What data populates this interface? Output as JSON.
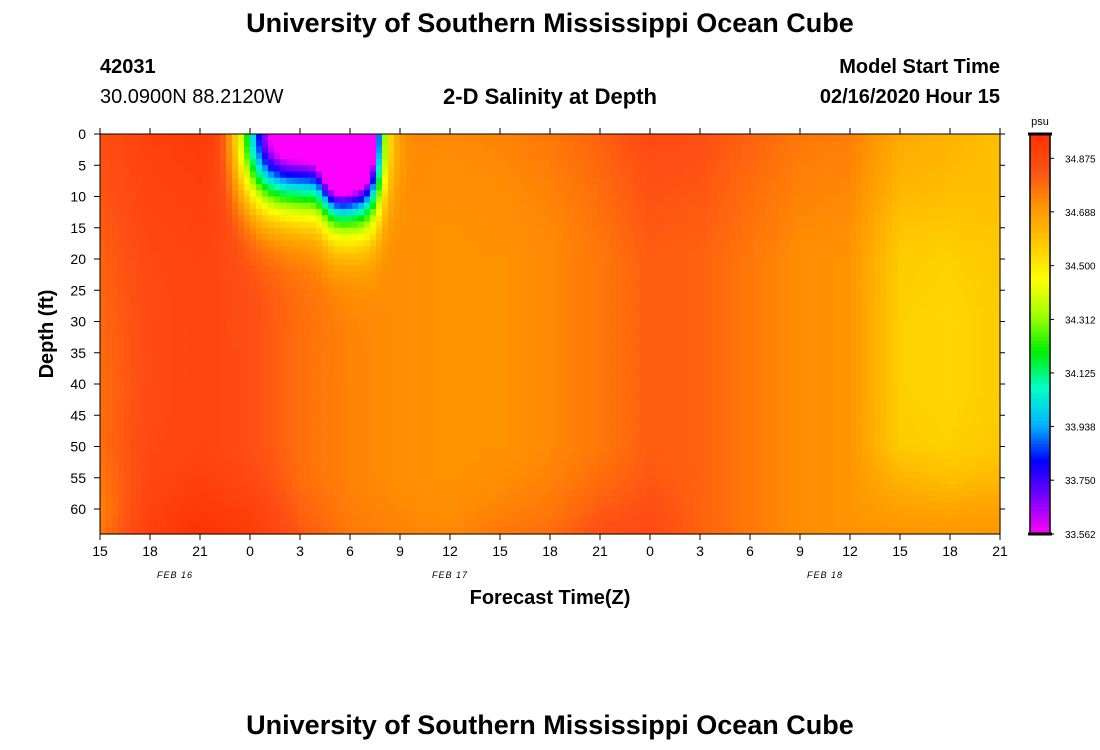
{
  "page": {
    "title_top": "University of Southern Mississippi Ocean Cube",
    "title_bottom": "University of Southern Mississippi Ocean Cube",
    "station_id": "42031",
    "station_coords": "30.0900N 88.2120W",
    "subtitle": "2-D Salinity at Depth",
    "model_start_label": "Model Start Time",
    "model_start_value": "02/16/2020 Hour 15"
  },
  "chart_data": {
    "type": "heatmap",
    "title": "2-D Salinity at Depth",
    "xlabel": "Forecast Time(Z)",
    "ylabel": "Depth (ft)",
    "x_hours_range": [
      0,
      54
    ],
    "x_tick_labels": [
      "15",
      "18",
      "21",
      "0",
      "3",
      "6",
      "9",
      "12",
      "15",
      "18",
      "21",
      "0",
      "3",
      "6",
      "9",
      "12",
      "15",
      "18",
      "21"
    ],
    "date_labels": [
      {
        "label": "FEB 16",
        "hour": 4.5
      },
      {
        "label": "FEB 17",
        "hour": 21
      },
      {
        "label": "FEB 18",
        "hour": 43.5
      }
    ],
    "y_range": [
      0,
      64
    ],
    "y_inverted": true,
    "y_ticks": [
      0,
      5,
      10,
      15,
      20,
      25,
      30,
      35,
      40,
      45,
      50,
      55,
      60
    ],
    "colorbar": {
      "unit": "psu",
      "min": 33.562,
      "max": 34.96,
      "tick_values": [
        34.875,
        34.688,
        34.5,
        34.312,
        34.125,
        33.938,
        33.75,
        33.562
      ],
      "tick_labels": [
        "34.875",
        "34.688",
        "34.500",
        "34.312",
        "34.125",
        "33.938",
        "33.750",
        "33.562"
      ],
      "colors": [
        "#ff00ff",
        "#7b00ff",
        "#0000ff",
        "#00b4ff",
        "#00ffc8",
        "#00f000",
        "#a0ff00",
        "#ffff00",
        "#ffc800",
        "#ff9600",
        "#ff5014",
        "#ff3200"
      ]
    },
    "grid": {
      "hours": [
        0,
        3,
        6,
        9,
        12,
        15,
        18,
        21,
        24,
        27,
        30,
        33,
        36,
        39,
        42,
        45,
        48,
        51,
        54
      ],
      "depths": [
        0,
        5,
        10,
        15,
        20,
        30,
        40,
        50,
        55,
        60,
        64
      ],
      "values": [
        [
          34.84,
          34.9,
          34.92,
          34.88,
          34.82,
          34.78,
          34.74,
          34.73,
          34.74,
          34.76,
          34.8,
          34.86,
          34.84,
          34.8,
          34.76,
          34.75,
          34.66,
          34.63,
          34.6
        ],
        [
          34.83,
          34.89,
          34.91,
          34.87,
          34.81,
          34.77,
          34.73,
          34.72,
          34.73,
          34.75,
          34.79,
          34.84,
          34.83,
          34.79,
          34.75,
          34.74,
          34.64,
          34.62,
          34.6
        ],
        [
          34.82,
          34.88,
          34.9,
          34.86,
          34.8,
          34.76,
          34.73,
          34.72,
          34.72,
          34.74,
          34.78,
          34.83,
          34.82,
          34.78,
          34.74,
          34.73,
          34.62,
          34.6,
          34.6
        ],
        [
          34.81,
          34.87,
          34.89,
          34.85,
          34.79,
          34.75,
          34.72,
          34.71,
          34.72,
          34.73,
          34.77,
          34.82,
          34.81,
          34.77,
          34.73,
          34.72,
          34.59,
          34.58,
          34.59
        ],
        [
          34.8,
          34.86,
          34.88,
          34.84,
          34.78,
          34.74,
          34.72,
          34.71,
          34.71,
          34.73,
          34.76,
          34.81,
          34.8,
          34.76,
          34.72,
          34.71,
          34.57,
          34.56,
          34.58
        ],
        [
          34.79,
          34.85,
          34.88,
          34.84,
          34.78,
          34.74,
          34.72,
          34.71,
          34.71,
          34.73,
          34.76,
          34.81,
          34.8,
          34.76,
          34.72,
          34.71,
          34.56,
          34.55,
          34.57
        ],
        [
          34.78,
          34.85,
          34.88,
          34.84,
          34.78,
          34.74,
          34.72,
          34.71,
          34.71,
          34.73,
          34.76,
          34.81,
          34.8,
          34.76,
          34.72,
          34.71,
          34.56,
          34.55,
          34.57
        ],
        [
          34.78,
          34.86,
          34.88,
          34.84,
          34.78,
          34.74,
          34.72,
          34.71,
          34.71,
          34.73,
          34.76,
          34.81,
          34.8,
          34.76,
          34.72,
          34.71,
          34.57,
          34.56,
          34.58
        ],
        [
          34.76,
          34.87,
          34.9,
          34.86,
          34.78,
          34.74,
          34.72,
          34.71,
          34.72,
          34.74,
          34.78,
          34.82,
          34.8,
          34.76,
          34.72,
          34.71,
          34.63,
          34.6,
          34.62
        ],
        [
          34.74,
          34.89,
          34.93,
          34.9,
          34.8,
          34.75,
          34.73,
          34.72,
          34.74,
          34.76,
          34.81,
          34.84,
          34.8,
          34.76,
          34.72,
          34.71,
          34.68,
          34.67,
          34.68
        ],
        [
          34.76,
          34.9,
          34.96,
          34.92,
          34.82,
          34.76,
          34.74,
          34.73,
          34.76,
          34.78,
          34.84,
          34.86,
          34.8,
          34.76,
          34.72,
          34.71,
          34.71,
          34.7,
          34.7
        ]
      ],
      "anomalies": [
        {
          "hour": 15.1,
          "depth": 1,
          "amplitude": 0.95,
          "h_sigma": 1.4,
          "d_sigma": 8.5
        },
        {
          "hour": 12.6,
          "depth": 0,
          "amplitude": 1.45,
          "h_sigma": 3.4,
          "d_sigma": 7.8
        }
      ]
    }
  }
}
